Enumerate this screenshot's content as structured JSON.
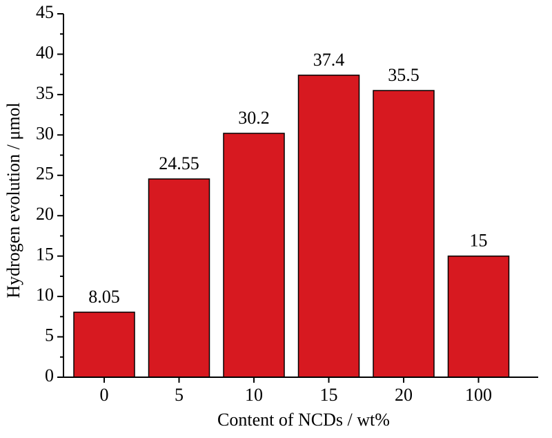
{
  "chart_data": {
    "type": "bar",
    "x_label": "Content of NCDs / wt%",
    "y_label": "Hydrogen evolution / μmol",
    "categories": [
      "0",
      "5",
      "10",
      "15",
      "20",
      "100"
    ],
    "values": [
      8.05,
      24.55,
      30.2,
      37.4,
      35.5,
      15
    ],
    "color": "#d71920",
    "ylim": [
      0,
      45
    ],
    "yticks": [
      0,
      5,
      10,
      15,
      20,
      25,
      30,
      35,
      40,
      45
    ],
    "grid": false
  }
}
